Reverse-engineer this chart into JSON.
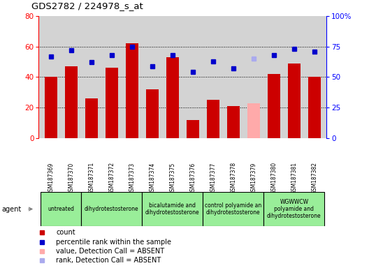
{
  "title": "GDS2782 / 224978_s_at",
  "samples": [
    "GSM187369",
    "GSM187370",
    "GSM187371",
    "GSM187372",
    "GSM187373",
    "GSM187374",
    "GSM187375",
    "GSM187376",
    "GSM187377",
    "GSM187378",
    "GSM187379",
    "GSM187380",
    "GSM187381",
    "GSM187382"
  ],
  "count_values": [
    40,
    47,
    26,
    46,
    62,
    32,
    53,
    12,
    25,
    21,
    23,
    42,
    49,
    40
  ],
  "count_colors": [
    "#cc0000",
    "#cc0000",
    "#cc0000",
    "#cc0000",
    "#cc0000",
    "#cc0000",
    "#cc0000",
    "#cc0000",
    "#cc0000",
    "#cc0000",
    "#ffaaaa",
    "#cc0000",
    "#cc0000",
    "#cc0000"
  ],
  "rank_values": [
    67,
    72,
    62,
    68,
    75,
    59,
    68,
    54,
    63,
    57,
    65,
    68,
    73,
    71
  ],
  "rank_absent": [
    false,
    false,
    false,
    false,
    false,
    false,
    false,
    false,
    false,
    false,
    true,
    false,
    false,
    false
  ],
  "ylim_left": [
    0,
    80
  ],
  "ylim_right": [
    0,
    100
  ],
  "left_ticks": [
    0,
    20,
    40,
    60,
    80
  ],
  "right_ticks": [
    0,
    25,
    50,
    75,
    100
  ],
  "group_definitions": [
    [
      0,
      2,
      "untreated"
    ],
    [
      2,
      5,
      "dihydrotestosterone"
    ],
    [
      5,
      8,
      "bicalutamide and\ndihydrotestosterone"
    ],
    [
      8,
      11,
      "control polyamide an\ndihydrotestosterone"
    ],
    [
      11,
      14,
      "WGWWCW\npolyamide and\ndihydrotestosterone"
    ]
  ],
  "background_color": "#ffffff",
  "plot_bg_color": "#d3d3d3",
  "gray_color": "#cccccc",
  "green_color": "#99ee99"
}
